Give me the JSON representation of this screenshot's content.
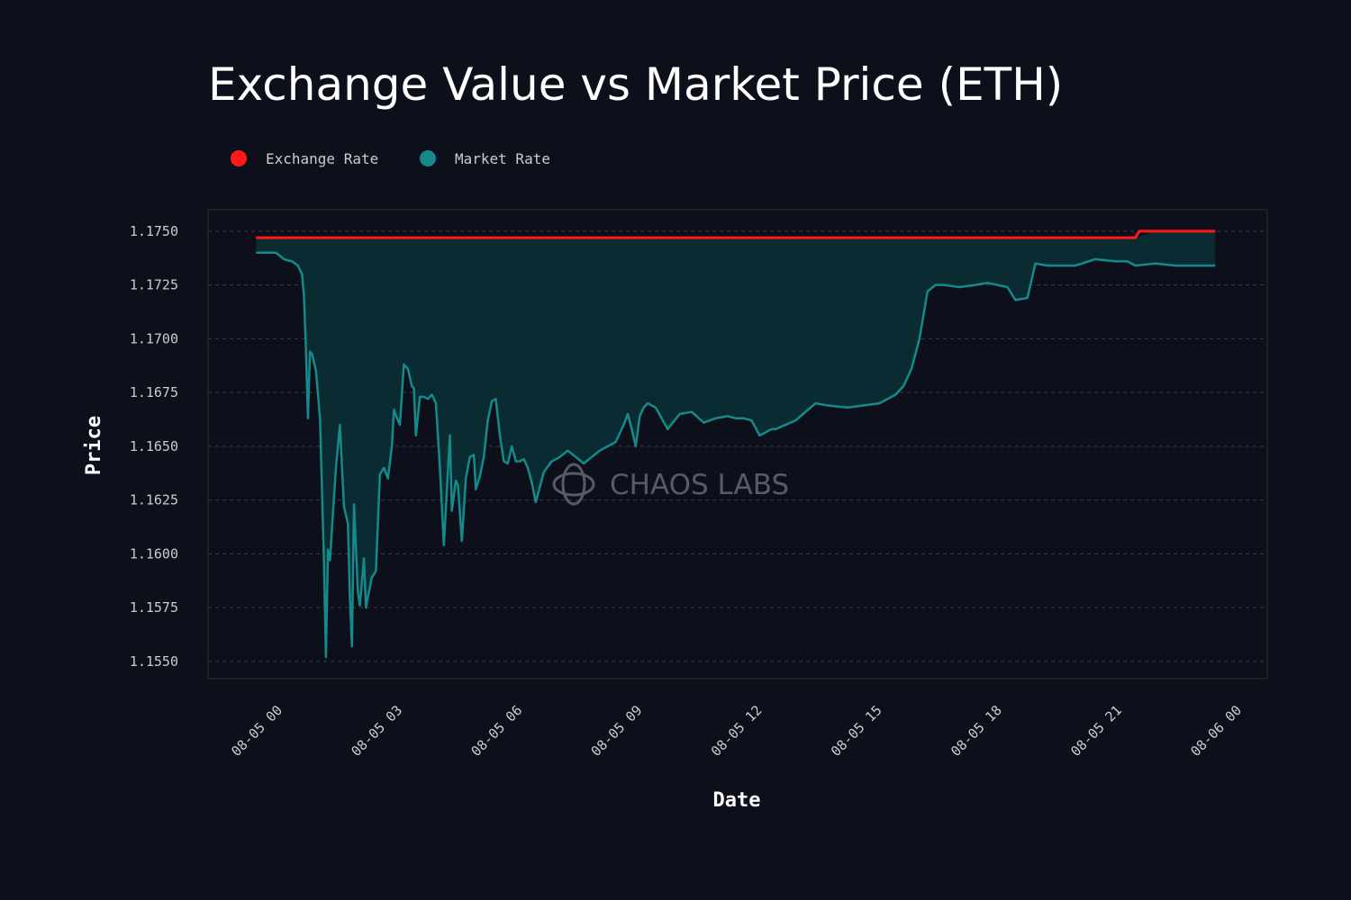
{
  "colors": {
    "background": "#0d101b",
    "exchange_rate": "#ff1a1a",
    "market_rate": "#148a8a",
    "fill": "#0b2b33",
    "grid": "#3a3d47",
    "watermark": "#5c606b"
  },
  "watermark": {
    "text": "CHAOS LABS",
    "icon": "chaos-labs-logo-icon"
  },
  "chart_data": {
    "type": "area",
    "title": "Exchange Value vs Market Price (ETH)",
    "xlabel": "Date",
    "ylabel": "Price",
    "x_unit": "hours since 08-05 00:00",
    "xlim": [
      -1.2,
      25.3
    ],
    "ylim": [
      1.1542,
      1.176
    ],
    "grid": true,
    "legend_position": "top-left",
    "x_ticks": [
      {
        "value": 0,
        "label": "08-05 00"
      },
      {
        "value": 3,
        "label": "08-05 03"
      },
      {
        "value": 6,
        "label": "08-05 06"
      },
      {
        "value": 9,
        "label": "08-05 09"
      },
      {
        "value": 12,
        "label": "08-05 12"
      },
      {
        "value": 15,
        "label": "08-05 15"
      },
      {
        "value": 18,
        "label": "08-05 18"
      },
      {
        "value": 21,
        "label": "08-05 21"
      },
      {
        "value": 24,
        "label": "08-06 00"
      }
    ],
    "y_ticks": [
      {
        "value": 1.175,
        "label": "1.1750"
      },
      {
        "value": 1.1725,
        "label": "1.1725"
      },
      {
        "value": 1.17,
        "label": "1.1700"
      },
      {
        "value": 1.1675,
        "label": "1.1675"
      },
      {
        "value": 1.165,
        "label": "1.1650"
      },
      {
        "value": 1.1625,
        "label": "1.1625"
      },
      {
        "value": 1.16,
        "label": "1.1600"
      },
      {
        "value": 1.1575,
        "label": "1.1575"
      },
      {
        "value": 1.155,
        "label": "1.1550"
      }
    ],
    "series": [
      {
        "name": "Exchange Rate",
        "color": "#ff1a1a",
        "x": [
          0.0,
          22.0,
          22.1,
          24.0
        ],
        "y": [
          1.1747,
          1.1747,
          1.175,
          1.175
        ]
      },
      {
        "name": "Market Rate",
        "color": "#148a8a",
        "x": [
          0.0,
          0.5,
          0.7,
          0.9,
          1.05,
          1.15,
          1.2,
          1.25,
          1.3,
          1.35,
          1.4,
          1.5,
          1.6,
          1.7,
          1.75,
          1.8,
          1.85,
          1.9,
          2.0,
          2.1,
          2.2,
          2.3,
          2.35,
          2.4,
          2.45,
          2.55,
          2.6,
          2.7,
          2.75,
          2.8,
          2.9,
          3.0,
          3.1,
          3.2,
          3.3,
          3.4,
          3.45,
          3.55,
          3.6,
          3.7,
          3.8,
          3.9,
          3.95,
          4.0,
          4.1,
          4.2,
          4.3,
          4.4,
          4.5,
          4.6,
          4.7,
          4.8,
          4.85,
          4.9,
          5.0,
          5.05,
          5.15,
          5.25,
          5.35,
          5.45,
          5.5,
          5.6,
          5.7,
          5.8,
          5.9,
          6.0,
          6.1,
          6.2,
          6.3,
          6.4,
          6.5,
          6.6,
          6.7,
          6.8,
          6.9,
          7.0,
          7.2,
          7.4,
          7.6,
          7.8,
          8.0,
          8.2,
          8.4,
          8.6,
          8.8,
          9.0,
          9.2,
          9.3,
          9.4,
          9.5,
          9.6,
          9.7,
          9.8,
          10.0,
          10.3,
          10.6,
          10.9,
          11.2,
          11.5,
          11.8,
          12.0,
          12.2,
          12.4,
          12.6,
          12.8,
          12.9,
          13.0,
          13.5,
          14.0,
          14.3,
          14.8,
          15.2,
          15.6,
          16.0,
          16.2,
          16.4,
          16.6,
          16.8,
          17.0,
          17.2,
          17.6,
          18.0,
          18.3,
          18.8,
          19.0,
          19.3,
          19.5,
          19.8,
          20.2,
          20.5,
          21.0,
          21.5,
          21.8,
          22.0,
          22.5,
          23.0,
          23.5,
          24.0
        ],
        "y": [
          1.174,
          1.174,
          1.1737,
          1.1736,
          1.1734,
          1.173,
          1.172,
          1.1695,
          1.1663,
          1.1694,
          1.1693,
          1.1685,
          1.1663,
          1.1596,
          1.1552,
          1.1602,
          1.1597,
          1.1612,
          1.164,
          1.166,
          1.1622,
          1.1614,
          1.158,
          1.1557,
          1.1623,
          1.1582,
          1.1576,
          1.1598,
          1.1575,
          1.158,
          1.1589,
          1.1592,
          1.1637,
          1.164,
          1.1635,
          1.165,
          1.1667,
          1.1662,
          1.166,
          1.1688,
          1.1686,
          1.1678,
          1.1677,
          1.1655,
          1.1673,
          1.1673,
          1.1672,
          1.1674,
          1.167,
          1.164,
          1.1604,
          1.1638,
          1.1655,
          1.162,
          1.1634,
          1.1632,
          1.1606,
          1.1635,
          1.1645,
          1.1646,
          1.163,
          1.1636,
          1.1645,
          1.1662,
          1.1671,
          1.1672,
          1.1655,
          1.1643,
          1.1642,
          1.165,
          1.1643,
          1.1643,
          1.1644,
          1.164,
          1.1633,
          1.1624,
          1.1638,
          1.1643,
          1.1645,
          1.1648,
          1.1645,
          1.1642,
          1.1645,
          1.1648,
          1.165,
          1.1652,
          1.166,
          1.1665,
          1.1658,
          1.165,
          1.1664,
          1.1668,
          1.167,
          1.1668,
          1.1658,
          1.1665,
          1.1666,
          1.1661,
          1.1663,
          1.1664,
          1.1663,
          1.1663,
          1.1662,
          1.1655,
          1.1657,
          1.1658,
          1.1658,
          1.1662,
          1.167,
          1.1669,
          1.1668,
          1.1669,
          1.167,
          1.1674,
          1.1678,
          1.1686,
          1.17,
          1.1722,
          1.1725,
          1.1725,
          1.1724,
          1.1725,
          1.1726,
          1.1724,
          1.1718,
          1.1719,
          1.1735,
          1.1734,
          1.1734,
          1.1734,
          1.1737,
          1.1736,
          1.1736,
          1.1734,
          1.1735,
          1.1734,
          1.1734,
          1.1734
        ]
      }
    ]
  }
}
